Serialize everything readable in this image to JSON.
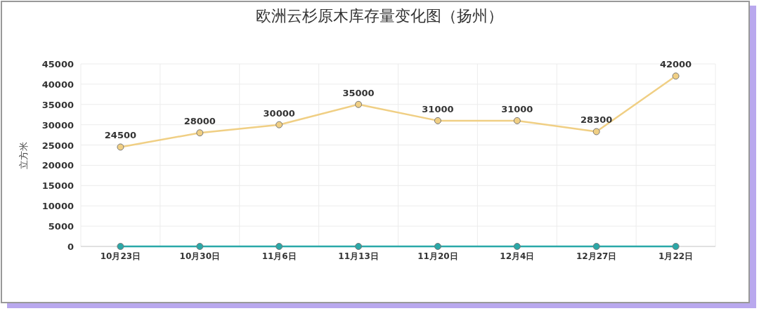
{
  "chart_data": {
    "type": "line",
    "title": "欧洲云杉原木库存量变化图（扬州）",
    "ylabel": "立方米",
    "categories": [
      "10月23日",
      "10月30日",
      "11月6日",
      "11月13日",
      "11月20日",
      "12月4日",
      "12月27日",
      "1月22日"
    ],
    "series": [
      {
        "color": "#f0cf84",
        "values": [
          24500,
          28000,
          30000,
          35000,
          31000,
          31000,
          28300,
          42000
        ],
        "value_labels": [
          "24500",
          "28000",
          "30000",
          "35000",
          "31000",
          "31000",
          "28300",
          "42000"
        ]
      },
      {
        "color": "#2aa8a8",
        "values": [
          0,
          0,
          0,
          0,
          0,
          0,
          0,
          0
        ]
      }
    ],
    "ylim": [
      0,
      45000
    ],
    "yticks": [
      0,
      5000,
      10000,
      15000,
      20000,
      25000,
      30000,
      35000,
      40000,
      45000
    ],
    "grid": true,
    "marker": "circle"
  }
}
